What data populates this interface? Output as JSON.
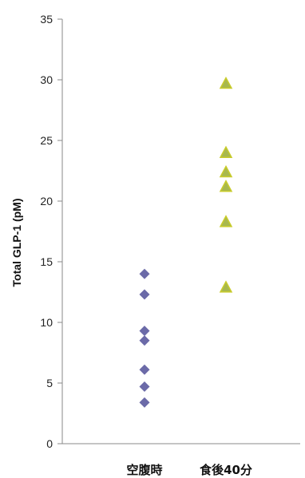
{
  "chart_data": {
    "type": "scatter",
    "title": "",
    "xlabel": "",
    "ylabel": "Total GLP-1 (pM)",
    "ylim": [
      0,
      35
    ],
    "yticks": [
      0,
      5,
      10,
      15,
      20,
      25,
      30,
      35
    ],
    "grid": false,
    "legend": "none",
    "categories": [
      "空腹時",
      "食後40分"
    ],
    "series": [
      {
        "category": "空腹時",
        "marker": "diamond",
        "color": "#6b6aa8",
        "values": [
          14.0,
          12.3,
          9.3,
          8.5,
          6.1,
          4.7,
          3.4
        ]
      },
      {
        "category": "食後40分",
        "marker": "triangle",
        "color": "#a8b84e",
        "edge_color": "#c9cc2a",
        "values": [
          29.7,
          24.0,
          22.4,
          21.2,
          18.3,
          12.9
        ]
      }
    ]
  }
}
